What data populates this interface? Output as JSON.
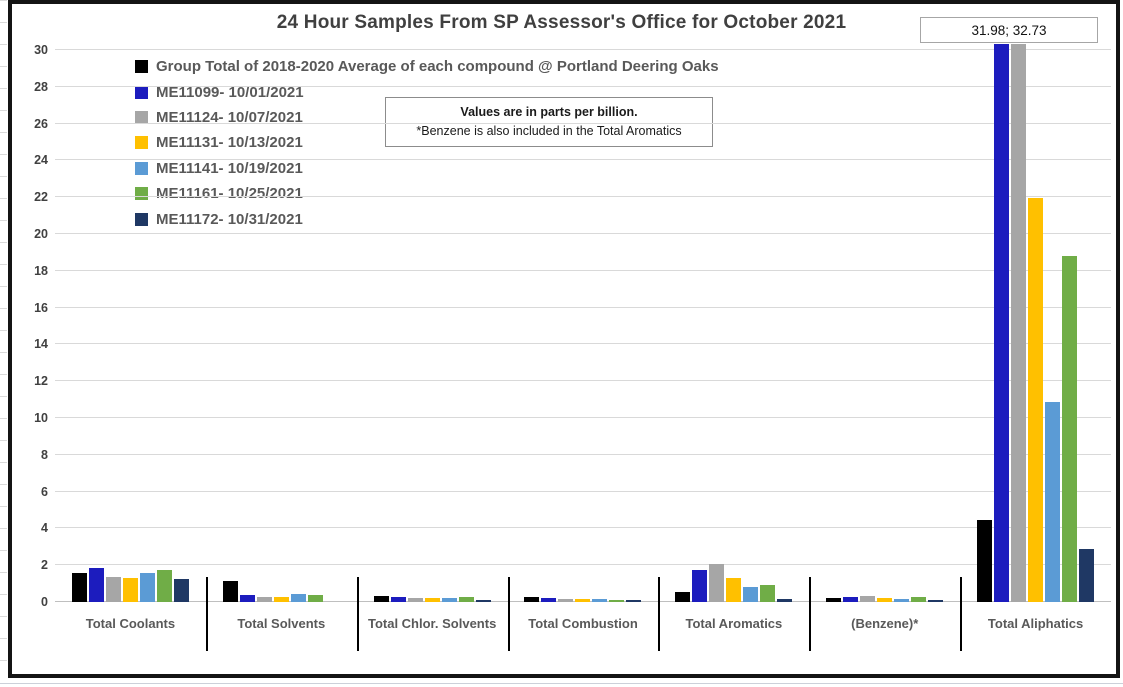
{
  "chart_data": {
    "type": "bar",
    "title": "24 Hour Samples From SP Assessor's Office for October 2021",
    "categories": [
      "Total Coolants",
      "Total Solvents",
      "Total Chlor. Solvents",
      "Total Combustion",
      "Total Aromatics",
      "(Benzene)*",
      "Total Aliphatics"
    ],
    "series": [
      {
        "name": "Group Total of 2018-2020 Average of each compound @ Portland Deering Oaks",
        "color": "#000000",
        "values": [
          1.55,
          1.15,
          0.33,
          0.27,
          0.55,
          0.22,
          4.45
        ]
      },
      {
        "name": "ME11099- 10/01/2021",
        "color": "#1c1cbe",
        "values": [
          1.85,
          0.4,
          0.28,
          0.2,
          1.72,
          0.27,
          31.98
        ]
      },
      {
        "name": "ME11124- 10/07/2021",
        "color": "#a6a6a6",
        "values": [
          1.38,
          0.28,
          0.22,
          0.15,
          2.05,
          0.33,
          32.73
        ]
      },
      {
        "name": "ME11131- 10/13/2021",
        "color": "#ffc000",
        "values": [
          1.3,
          0.28,
          0.24,
          0.17,
          1.33,
          0.22,
          21.95
        ]
      },
      {
        "name": "ME11141- 10/19/2021",
        "color": "#5b9bd5",
        "values": [
          1.55,
          0.42,
          0.22,
          0.18,
          0.8,
          0.15,
          10.87
        ]
      },
      {
        "name": "ME11161- 10/25/2021",
        "color": "#70ad47",
        "values": [
          1.72,
          0.38,
          0.26,
          0.1,
          0.91,
          0.26,
          18.8
        ]
      },
      {
        "name": "ME11172- 10/31/2021",
        "color": "#1f3864",
        "values": [
          1.25,
          0.0,
          0.12,
          0.1,
          0.18,
          0.09,
          2.9
        ]
      }
    ],
    "ylim": [
      0,
      30
    ],
    "ytick_step": 2,
    "yticks": [
      0,
      2,
      4,
      6,
      8,
      10,
      12,
      14,
      16,
      18,
      20,
      22,
      24,
      26,
      28,
      30
    ],
    "grid": true,
    "legend_position": "top-left-vertical",
    "clipped_bars_note": "blue and gray Total Aliphatics bars exceed axis max; actual values shown in callout"
  },
  "callout": {
    "label": "31.98; 32.73"
  },
  "annotation": {
    "line1": "Values are in parts per billion.",
    "line2": "*Benzene is also included in the Total Aromatics"
  },
  "colors": {
    "title_text": "#404040",
    "legend_text": "#595959",
    "axis_text": "#404040",
    "gridline": "#d9d9d9",
    "frame_border": "#141414"
  }
}
